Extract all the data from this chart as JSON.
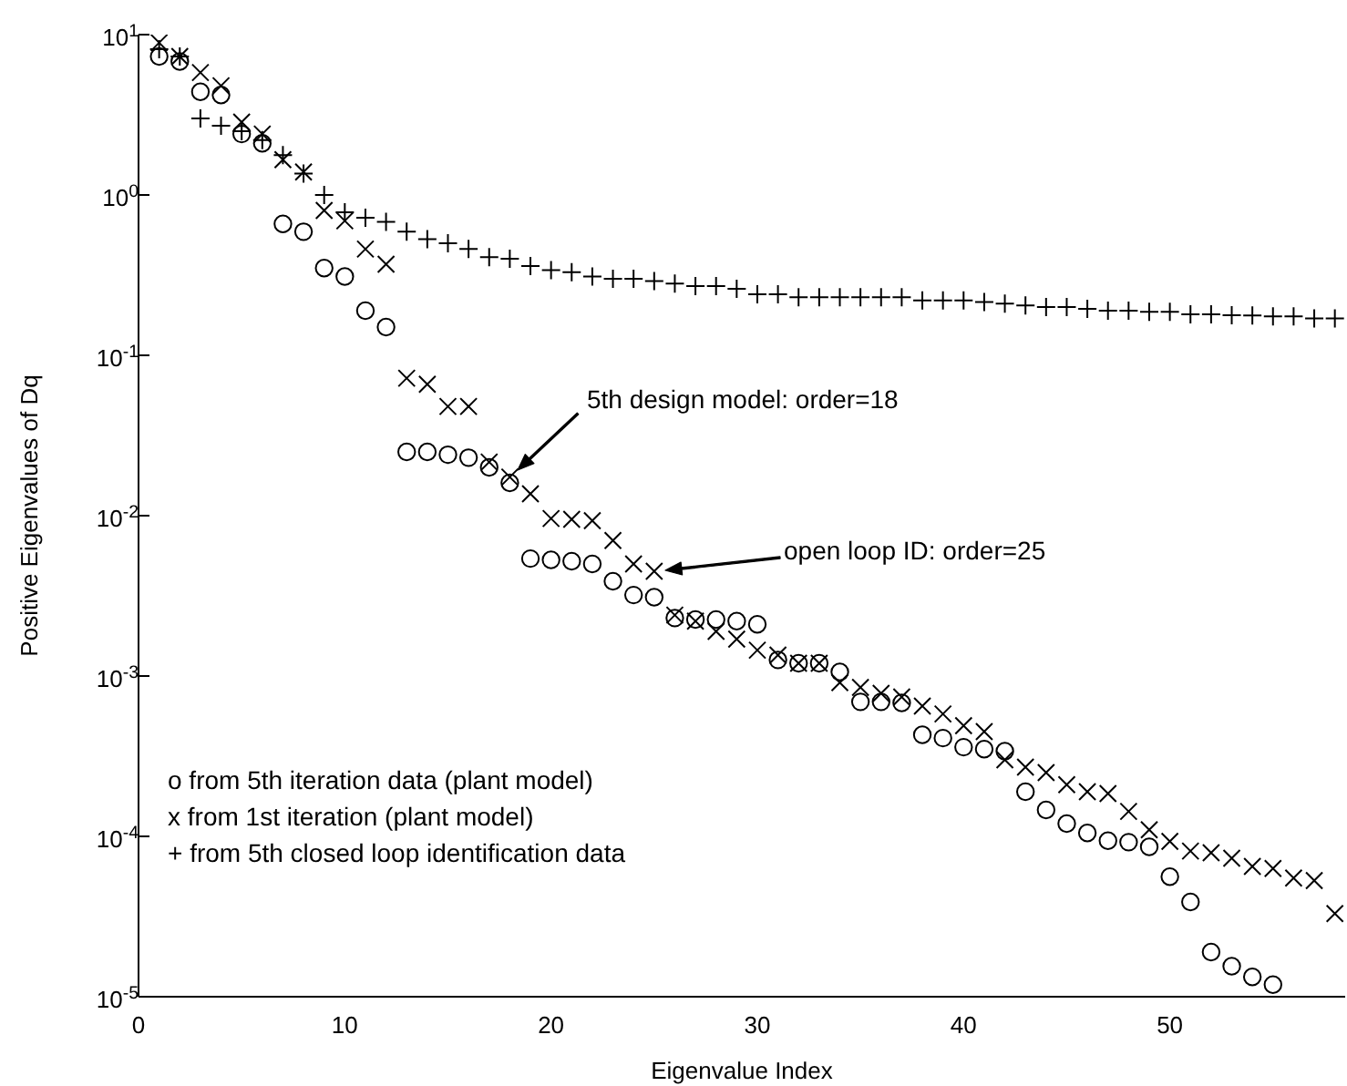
{
  "chart_data": {
    "type": "scatter",
    "xlabel": "Eigenvalue Index",
    "ylabel": "Positive Eigenvalues of Dq",
    "log": "y",
    "grid": false,
    "legend": false,
    "xlim": [
      0,
      58.5
    ],
    "xticks": [
      0,
      10,
      20,
      30,
      40,
      50
    ],
    "ylim": [
      1e-05,
      10
    ],
    "yticks": [
      {
        "value": 10,
        "label": "10$^{1}$"
      },
      {
        "value": 1,
        "label": "10$^{0}$"
      },
      {
        "value": 0.1,
        "label": "10$^{-1}$"
      },
      {
        "value": 0.01,
        "label": "10$^{-2}$"
      },
      {
        "value": 0.001,
        "label": "10$^{-3}$"
      },
      {
        "value": 0.0001,
        "label": "10$^{-4}$"
      },
      {
        "value": 1e-05,
        "label": "10$^{-5}$"
      }
    ],
    "series": [
      {
        "color": "#000000",
        "marker": "circle",
        "x": [
          1,
          2,
          3,
          4,
          5,
          6,
          7,
          8,
          9,
          10,
          11,
          12,
          13,
          14,
          15,
          16,
          17,
          18,
          19,
          20,
          21,
          22,
          23,
          24,
          25,
          26,
          27,
          28,
          29,
          30,
          31,
          32,
          33,
          34,
          35,
          36,
          37,
          38,
          39,
          40,
          41,
          42,
          43,
          44,
          45,
          46,
          47,
          48,
          49,
          50,
          51,
          52,
          53,
          54,
          55
        ],
        "values": [
          7.3,
          6.8,
          4.4,
          4.2,
          2.4,
          2.1,
          0.66,
          0.59,
          0.35,
          0.31,
          0.19,
          0.15,
          0.025,
          0.025,
          0.024,
          0.023,
          0.02,
          0.016,
          0.0054,
          0.0053,
          0.0052,
          0.005,
          0.0039,
          0.0032,
          0.0031,
          0.0023,
          0.00225,
          0.00225,
          0.0022,
          0.0021,
          0.00126,
          0.0012,
          0.0012,
          0.00106,
          0.00069,
          0.00069,
          0.00068,
          0.00043,
          0.00041,
          0.00036,
          0.00035,
          0.00034,
          0.00019,
          0.000146,
          0.00012,
          0.000105,
          9.4e-05,
          9.2e-05,
          8.6e-05,
          5.6e-05,
          3.9e-05,
          1.9e-05,
          1.55e-05,
          1.33e-05,
          1.19e-05
        ]
      },
      {
        "color": "#000000",
        "marker": "cross",
        "x": [
          1,
          2,
          3,
          4,
          5,
          6,
          7,
          8,
          9,
          10,
          11,
          12,
          13,
          14,
          15,
          16,
          17,
          18,
          19,
          20,
          21,
          22,
          23,
          24,
          25,
          26,
          27,
          28,
          29,
          30,
          31,
          32,
          33,
          34,
          35,
          36,
          37,
          38,
          39,
          40,
          41,
          42,
          43,
          44,
          45,
          46,
          47,
          48,
          49,
          50,
          51,
          52,
          53,
          54,
          55,
          56,
          57,
          58
        ],
        "values": [
          8.9,
          7.3,
          5.8,
          4.8,
          2.85,
          2.4,
          1.66,
          1.39,
          0.8,
          0.69,
          0.46,
          0.37,
          0.072,
          0.066,
          0.048,
          0.048,
          0.0216,
          0.0174,
          0.0137,
          0.0096,
          0.0095,
          0.0093,
          0.007,
          0.005,
          0.0045,
          0.0024,
          0.0022,
          0.0019,
          0.0017,
          0.00145,
          0.00135,
          0.0012,
          0.0012,
          0.00091,
          0.00085,
          0.00078,
          0.00074,
          0.00065,
          0.00058,
          0.00049,
          0.00045,
          0.0003,
          0.00027,
          0.00025,
          0.00021,
          0.00019,
          0.000185,
          0.000143,
          0.00011,
          9.3e-05,
          8.1e-05,
          7.9e-05,
          7.3e-05,
          6.5e-05,
          6.3e-05,
          5.5e-05,
          5.3e-05,
          3.3e-05
        ]
      },
      {
        "color": "#000000",
        "marker": "plus",
        "x": [
          1,
          2,
          3,
          4,
          5,
          6,
          7,
          8,
          9,
          10,
          11,
          12,
          13,
          14,
          15,
          16,
          17,
          18,
          19,
          20,
          21,
          22,
          23,
          24,
          25,
          26,
          27,
          28,
          29,
          30,
          31,
          32,
          33,
          34,
          35,
          36,
          37,
          38,
          39,
          40,
          41,
          42,
          43,
          44,
          45,
          46,
          47,
          48,
          49,
          50,
          51,
          52,
          53,
          54,
          55,
          56,
          57,
          58
        ],
        "values": [
          8.1,
          7.3,
          3.0,
          2.7,
          2.5,
          2.2,
          1.77,
          1.36,
          1.0,
          0.78,
          0.72,
          0.68,
          0.59,
          0.53,
          0.5,
          0.46,
          0.41,
          0.4,
          0.36,
          0.34,
          0.33,
          0.31,
          0.3,
          0.3,
          0.29,
          0.28,
          0.27,
          0.27,
          0.26,
          0.24,
          0.24,
          0.23,
          0.23,
          0.23,
          0.23,
          0.23,
          0.23,
          0.22,
          0.22,
          0.22,
          0.215,
          0.21,
          0.205,
          0.2,
          0.2,
          0.195,
          0.19,
          0.19,
          0.187,
          0.187,
          0.18,
          0.18,
          0.178,
          0.177,
          0.175,
          0.175,
          0.17,
          0.17
        ]
      }
    ],
    "annotations": [
      "5th design model: order=18",
      "open loop ID: order=25",
      "o from 5th iteration data (plant model)",
      "x from 1st iteration (plant model)",
      "+ from 5th closed loop identification data"
    ]
  }
}
